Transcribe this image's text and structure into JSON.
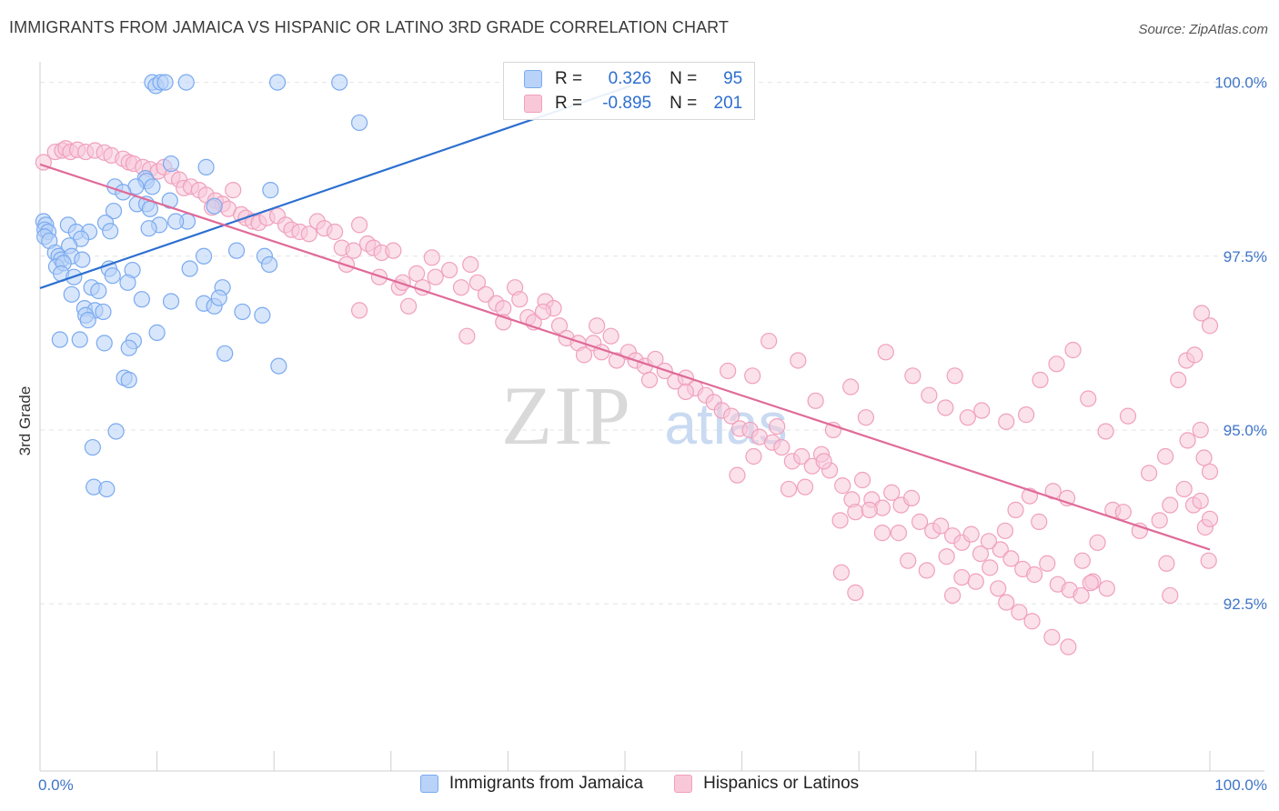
{
  "title": "IMMIGRANTS FROM JAMAICA VS HISPANIC OR LATINO 3RD GRADE CORRELATION CHART",
  "source": "Source: ZipAtlas.com",
  "watermark": {
    "zip": "ZIP",
    "atlas": "atlas"
  },
  "legend": {
    "r_label": "R =",
    "n_label": "N =",
    "series": [
      {
        "name": "Immigrants from Jamaica",
        "r": "0.326",
        "n": "95",
        "color": "#7aaaf0",
        "fill": "#b8d2f8",
        "line": "#2c6fd0"
      },
      {
        "name": "Hispanics or Latinos",
        "r": "-0.895",
        "n": "201",
        "color": "#f0a0bd",
        "fill": "#f8c8d8",
        "line": "#e06a98"
      }
    ]
  },
  "chart_data": {
    "type": "scatter",
    "title": "IMMIGRANTS FROM JAMAICA VS HISPANIC OR LATINO 3RD GRADE CORRELATION CHART",
    "xlabel": "",
    "ylabel": "3rd Grade",
    "xlim": [
      0,
      100
    ],
    "ylim": [
      90.2,
      100.4
    ],
    "x_tick_labels": [
      "0.0%",
      "100.0%"
    ],
    "y_ticks": [
      92.5,
      95.0,
      97.5,
      100.0
    ],
    "y_tick_labels": [
      "92.5%",
      "95.0%",
      "97.5%",
      "100.0%"
    ],
    "series": [
      {
        "name": "Immigrants from Jamaica",
        "trend": {
          "x": [
            0,
            50.5
          ],
          "y": [
            97.04,
            99.95
          ]
        },
        "points": [
          [
            9.6,
            100.0
          ],
          [
            9.9,
            99.95
          ],
          [
            10.3,
            100.0
          ],
          [
            10.7,
            100.0
          ],
          [
            12.5,
            100.0
          ],
          [
            20.3,
            100.0
          ],
          [
            25.6,
            100.0
          ],
          [
            27.3,
            99.42
          ],
          [
            11.2,
            98.83
          ],
          [
            14.2,
            98.78
          ],
          [
            9.0,
            98.62
          ],
          [
            9.1,
            98.58
          ],
          [
            6.4,
            98.5
          ],
          [
            8.2,
            98.5
          ],
          [
            9.6,
            98.5
          ],
          [
            7.1,
            98.42
          ],
          [
            19.7,
            98.45
          ],
          [
            11.1,
            98.3
          ],
          [
            8.3,
            98.25
          ],
          [
            9.1,
            98.25
          ],
          [
            14.9,
            98.22
          ],
          [
            6.3,
            98.15
          ],
          [
            9.4,
            98.18
          ],
          [
            0.3,
            98.0
          ],
          [
            0.5,
            97.95
          ],
          [
            5.6,
            97.98
          ],
          [
            2.4,
            97.95
          ],
          [
            12.6,
            98.0
          ],
          [
            10.2,
            97.95
          ],
          [
            11.6,
            98.0
          ],
          [
            0.4,
            97.88
          ],
          [
            0.7,
            97.85
          ],
          [
            3.1,
            97.85
          ],
          [
            4.2,
            97.85
          ],
          [
            6.0,
            97.86
          ],
          [
            9.3,
            97.9
          ],
          [
            0.4,
            97.78
          ],
          [
            0.8,
            97.72
          ],
          [
            3.5,
            97.75
          ],
          [
            2.5,
            97.65
          ],
          [
            1.3,
            97.55
          ],
          [
            1.6,
            97.5
          ],
          [
            1.8,
            97.45
          ],
          [
            2.7,
            97.5
          ],
          [
            3.6,
            97.45
          ],
          [
            14.0,
            97.5
          ],
          [
            16.8,
            97.58
          ],
          [
            19.2,
            97.5
          ],
          [
            1.4,
            97.35
          ],
          [
            2.0,
            97.4
          ],
          [
            1.8,
            97.25
          ],
          [
            2.9,
            97.2
          ],
          [
            5.9,
            97.32
          ],
          [
            7.9,
            97.3
          ],
          [
            19.6,
            97.38
          ],
          [
            12.8,
            97.32
          ],
          [
            6.2,
            97.22
          ],
          [
            7.5,
            97.12
          ],
          [
            4.4,
            97.05
          ],
          [
            5.0,
            97.0
          ],
          [
            2.7,
            96.95
          ],
          [
            11.2,
            96.85
          ],
          [
            8.7,
            96.88
          ],
          [
            15.6,
            97.05
          ],
          [
            14.0,
            96.82
          ],
          [
            14.9,
            96.78
          ],
          [
            15.3,
            96.9
          ],
          [
            3.8,
            96.75
          ],
          [
            4.7,
            96.72
          ],
          [
            5.4,
            96.7
          ],
          [
            3.9,
            96.65
          ],
          [
            4.1,
            96.58
          ],
          [
            17.3,
            96.7
          ],
          [
            19.0,
            96.65
          ],
          [
            10.0,
            96.4
          ],
          [
            1.7,
            96.3
          ],
          [
            3.4,
            96.3
          ],
          [
            5.5,
            96.25
          ],
          [
            8.0,
            96.28
          ],
          [
            7.6,
            96.18
          ],
          [
            15.8,
            96.1
          ],
          [
            20.4,
            95.92
          ],
          [
            7.2,
            95.75
          ],
          [
            7.6,
            95.72
          ],
          [
            6.5,
            94.98
          ],
          [
            4.5,
            94.75
          ],
          [
            4.6,
            94.18
          ],
          [
            5.7,
            94.15
          ]
        ]
      },
      {
        "name": "Hispanics or Latinos",
        "trend": {
          "x": [
            0,
            100
          ],
          "y": [
            98.82,
            93.28
          ]
        },
        "points": [
          [
            0.3,
            98.85
          ],
          [
            1.3,
            99.0
          ],
          [
            1.9,
            99.02
          ],
          [
            2.2,
            99.05
          ],
          [
            2.6,
            99.0
          ],
          [
            3.2,
            99.03
          ],
          [
            3.9,
            99.0
          ],
          [
            4.7,
            99.02
          ],
          [
            5.5,
            98.99
          ],
          [
            6.1,
            98.95
          ],
          [
            7.1,
            98.9
          ],
          [
            7.6,
            98.85
          ],
          [
            8.0,
            98.83
          ],
          [
            8.8,
            98.78
          ],
          [
            9.4,
            98.75
          ],
          [
            10.1,
            98.72
          ],
          [
            10.6,
            98.78
          ],
          [
            11.3,
            98.65
          ],
          [
            11.9,
            98.6
          ],
          [
            12.3,
            98.48
          ],
          [
            12.9,
            98.5
          ],
          [
            13.6,
            98.45
          ],
          [
            14.2,
            98.38
          ],
          [
            15.0,
            98.3
          ],
          [
            15.6,
            98.25
          ],
          [
            16.5,
            98.45
          ],
          [
            14.7,
            98.2
          ],
          [
            16.1,
            98.18
          ],
          [
            17.2,
            98.1
          ],
          [
            17.6,
            98.05
          ],
          [
            18.2,
            98.0
          ],
          [
            18.7,
            97.98
          ],
          [
            19.4,
            98.05
          ],
          [
            20.3,
            98.08
          ],
          [
            21.0,
            97.95
          ],
          [
            21.5,
            97.88
          ],
          [
            22.2,
            97.85
          ],
          [
            23.0,
            97.82
          ],
          [
            23.7,
            98.0
          ],
          [
            24.3,
            97.9
          ],
          [
            25.2,
            97.85
          ],
          [
            25.8,
            97.62
          ],
          [
            26.8,
            97.58
          ],
          [
            27.3,
            97.95
          ],
          [
            28.0,
            97.68
          ],
          [
            28.5,
            97.62
          ],
          [
            29.2,
            97.55
          ],
          [
            30.2,
            97.58
          ],
          [
            26.2,
            97.38
          ],
          [
            29.0,
            97.2
          ],
          [
            30.7,
            97.05
          ],
          [
            31.0,
            97.12
          ],
          [
            32.2,
            97.25
          ],
          [
            32.7,
            97.05
          ],
          [
            33.5,
            97.48
          ],
          [
            33.8,
            97.2
          ],
          [
            35.0,
            97.3
          ],
          [
            36.0,
            97.05
          ],
          [
            36.8,
            97.38
          ],
          [
            37.4,
            97.12
          ],
          [
            38.1,
            96.95
          ],
          [
            39.0,
            96.82
          ],
          [
            39.6,
            96.75
          ],
          [
            40.6,
            97.05
          ],
          [
            41.0,
            96.88
          ],
          [
            41.7,
            96.62
          ],
          [
            42.2,
            96.55
          ],
          [
            43.2,
            96.85
          ],
          [
            43.9,
            96.75
          ],
          [
            44.4,
            96.5
          ],
          [
            45.0,
            96.32
          ],
          [
            46.0,
            96.25
          ],
          [
            46.5,
            96.08
          ],
          [
            47.3,
            96.25
          ],
          [
            48.0,
            96.12
          ],
          [
            48.8,
            96.35
          ],
          [
            49.3,
            96.0
          ],
          [
            50.3,
            96.12
          ],
          [
            50.9,
            96.0
          ],
          [
            51.7,
            95.92
          ],
          [
            52.6,
            96.02
          ],
          [
            53.4,
            95.85
          ],
          [
            54.3,
            95.7
          ],
          [
            55.2,
            95.75
          ],
          [
            56.0,
            95.6
          ],
          [
            56.9,
            95.5
          ],
          [
            57.6,
            95.4
          ],
          [
            58.3,
            95.28
          ],
          [
            59.1,
            95.2
          ],
          [
            59.8,
            95.02
          ],
          [
            60.7,
            95.0
          ],
          [
            61.5,
            94.9
          ],
          [
            62.6,
            94.82
          ],
          [
            63.4,
            94.75
          ],
          [
            64.3,
            94.55
          ],
          [
            65.1,
            94.62
          ],
          [
            66.0,
            94.48
          ],
          [
            66.8,
            94.65
          ],
          [
            67.5,
            94.42
          ],
          [
            68.6,
            94.2
          ],
          [
            69.4,
            94.0
          ],
          [
            70.3,
            94.28
          ],
          [
            71.1,
            94.0
          ],
          [
            72.0,
            93.88
          ],
          [
            72.8,
            94.1
          ],
          [
            73.6,
            93.92
          ],
          [
            74.5,
            94.02
          ],
          [
            75.2,
            93.68
          ],
          [
            76.3,
            93.55
          ],
          [
            77.0,
            93.62
          ],
          [
            78.0,
            93.48
          ],
          [
            78.8,
            93.38
          ],
          [
            79.6,
            93.5
          ],
          [
            80.4,
            93.22
          ],
          [
            81.2,
            93.02
          ],
          [
            82.1,
            93.28
          ],
          [
            83.0,
            93.15
          ],
          [
            84.0,
            93.0
          ],
          [
            85.0,
            92.92
          ],
          [
            86.1,
            93.08
          ],
          [
            87.0,
            92.78
          ],
          [
            88.0,
            92.7
          ],
          [
            89.0,
            92.62
          ],
          [
            90.0,
            92.82
          ],
          [
            91.2,
            92.72
          ],
          [
            36.5,
            96.35
          ],
          [
            27.3,
            96.72
          ],
          [
            31.5,
            96.78
          ],
          [
            39.6,
            96.55
          ],
          [
            43.0,
            96.7
          ],
          [
            47.6,
            96.5
          ],
          [
            52.1,
            95.72
          ],
          [
            55.2,
            95.55
          ],
          [
            58.8,
            95.85
          ],
          [
            60.9,
            95.78
          ],
          [
            62.3,
            96.28
          ],
          [
            63.0,
            95.05
          ],
          [
            64.8,
            96.0
          ],
          [
            66.3,
            95.42
          ],
          [
            67.8,
            95.0
          ],
          [
            69.3,
            95.62
          ],
          [
            70.6,
            95.18
          ],
          [
            72.3,
            96.12
          ],
          [
            74.6,
            95.78
          ],
          [
            76.0,
            95.5
          ],
          [
            77.4,
            95.32
          ],
          [
            78.2,
            95.78
          ],
          [
            79.3,
            95.18
          ],
          [
            80.5,
            95.28
          ],
          [
            82.6,
            95.12
          ],
          [
            84.3,
            95.22
          ],
          [
            85.5,
            95.72
          ],
          [
            86.9,
            95.95
          ],
          [
            88.3,
            96.15
          ],
          [
            89.6,
            95.45
          ],
          [
            91.1,
            94.98
          ],
          [
            93.0,
            95.2
          ],
          [
            94.8,
            94.38
          ],
          [
            96.2,
            94.62
          ],
          [
            98.1,
            94.85
          ],
          [
            99.2,
            95.0
          ],
          [
            99.5,
            94.6
          ],
          [
            100.0,
            94.4
          ],
          [
            59.6,
            94.35
          ],
          [
            61.0,
            94.62
          ],
          [
            64.0,
            94.15
          ],
          [
            65.4,
            94.18
          ],
          [
            67.0,
            94.55
          ],
          [
            68.4,
            93.7
          ],
          [
            69.7,
            93.82
          ],
          [
            70.9,
            93.85
          ],
          [
            72.0,
            93.52
          ],
          [
            73.4,
            93.52
          ],
          [
            74.2,
            93.12
          ],
          [
            75.8,
            92.98
          ],
          [
            77.5,
            93.18
          ],
          [
            78.8,
            92.88
          ],
          [
            80.0,
            92.82
          ],
          [
            81.1,
            93.4
          ],
          [
            82.5,
            93.55
          ],
          [
            83.4,
            93.85
          ],
          [
            84.6,
            94.05
          ],
          [
            85.4,
            93.68
          ],
          [
            86.6,
            94.12
          ],
          [
            87.8,
            94.02
          ],
          [
            89.1,
            93.12
          ],
          [
            90.4,
            93.38
          ],
          [
            91.7,
            93.85
          ],
          [
            92.6,
            93.82
          ],
          [
            94.0,
            93.55
          ],
          [
            95.7,
            93.7
          ],
          [
            96.6,
            93.92
          ],
          [
            97.8,
            94.15
          ],
          [
            98.6,
            93.92
          ],
          [
            99.2,
            93.98
          ],
          [
            99.6,
            93.6
          ],
          [
            99.9,
            93.12
          ],
          [
            97.3,
            95.72
          ],
          [
            98.0,
            96.0
          ],
          [
            98.7,
            96.08
          ],
          [
            99.3,
            96.68
          ],
          [
            100.0,
            96.5
          ],
          [
            96.3,
            93.08
          ],
          [
            81.9,
            92.72
          ],
          [
            82.6,
            92.52
          ],
          [
            83.7,
            92.38
          ],
          [
            84.8,
            92.25
          ],
          [
            86.5,
            92.02
          ],
          [
            87.9,
            91.88
          ],
          [
            96.6,
            92.62
          ],
          [
            100.0,
            93.72
          ],
          [
            68.5,
            92.95
          ],
          [
            69.7,
            92.66
          ],
          [
            78.0,
            92.62
          ],
          [
            89.8,
            92.8
          ]
        ]
      }
    ]
  }
}
